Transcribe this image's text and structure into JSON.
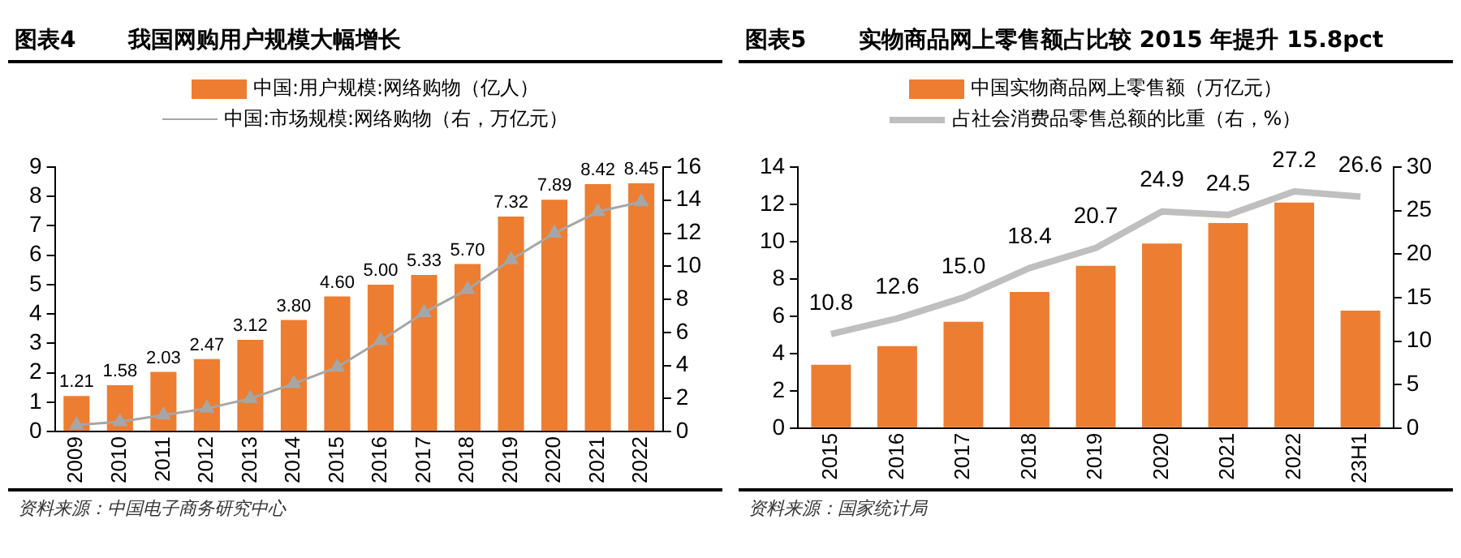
{
  "chart_data": [
    {
      "type": "bar",
      "title": "图表4",
      "subtitle": "我国网购用户规模大幅增长",
      "categories": [
        "2009",
        "2010",
        "2011",
        "2012",
        "2013",
        "2014",
        "2015",
        "2016",
        "2017",
        "2018",
        "2019",
        "2020",
        "2021",
        "2022"
      ],
      "series": [
        {
          "name": "中国:用户规模:网络购物（亿人）",
          "color": "#ed7d31",
          "values": [
            1.21,
            1.58,
            2.03,
            2.47,
            3.12,
            3.8,
            4.6,
            5.0,
            5.33,
            5.7,
            7.32,
            7.89,
            8.42,
            8.45
          ],
          "value_labels": [
            "1.21",
            "1.58",
            "2.03",
            "2.47",
            "3.12",
            "3.80",
            "4.60",
            "5.00",
            "5.33",
            "5.70",
            "7.32",
            "7.89",
            "8.42",
            "8.45"
          ]
        },
        {
          "name": "中国:市场规模:网络购物（右，万亿元）",
          "type": "line",
          "axis": "y2",
          "color": "#a6a6a6",
          "marker": "triangle",
          "values": [
            0.4,
            0.6,
            1.0,
            1.4,
            2.0,
            2.9,
            3.9,
            5.5,
            7.2,
            8.6,
            10.4,
            12.0,
            13.3,
            13.9
          ]
        }
      ],
      "ylim": [
        0,
        9
      ],
      "yticks": [
        0,
        1,
        2,
        3,
        4,
        5,
        6,
        7,
        8,
        9
      ],
      "y2lim": [
        0,
        16
      ],
      "y2ticks": [
        0,
        2,
        4,
        6,
        8,
        10,
        12,
        14,
        16
      ],
      "grid": false,
      "legend": "top",
      "annotations": [
        "资料来源：中国电子商务研究中心"
      ]
    },
    {
      "type": "bar",
      "title": "图表5",
      "subtitle": "实物商品网上零售额占比较 2015 年提升 15.8pct",
      "categories": [
        "2015",
        "2016",
        "2017",
        "2018",
        "2019",
        "2020",
        "2021",
        "2022",
        "23H1"
      ],
      "series": [
        {
          "name": "中国实物商品网上零售额（万亿元）",
          "color": "#ed7d31",
          "values": [
            3.4,
            4.4,
            5.7,
            7.3,
            8.7,
            9.9,
            11.0,
            12.1,
            6.3
          ]
        },
        {
          "name": "占社会消费品零售总额的比重（右，%）",
          "type": "line",
          "axis": "y2",
          "color": "#bfbfbf",
          "marker": "none",
          "values": [
            10.8,
            12.6,
            15.0,
            18.4,
            20.7,
            24.9,
            24.5,
            27.2,
            26.6
          ],
          "value_labels": [
            "10.8",
            "12.6",
            "15.0",
            "18.4",
            "20.7",
            "24.9",
            "24.5",
            "27.2",
            "26.6"
          ]
        }
      ],
      "ylim": [
        0,
        14
      ],
      "yticks": [
        0,
        2,
        4,
        6,
        8,
        10,
        12,
        14
      ],
      "y2lim": [
        0,
        30
      ],
      "y2ticks": [
        0,
        5,
        10,
        15,
        20,
        25,
        30
      ],
      "grid": false,
      "legend": "top",
      "annotations": [
        "资料来源：国家统计局"
      ]
    }
  ]
}
